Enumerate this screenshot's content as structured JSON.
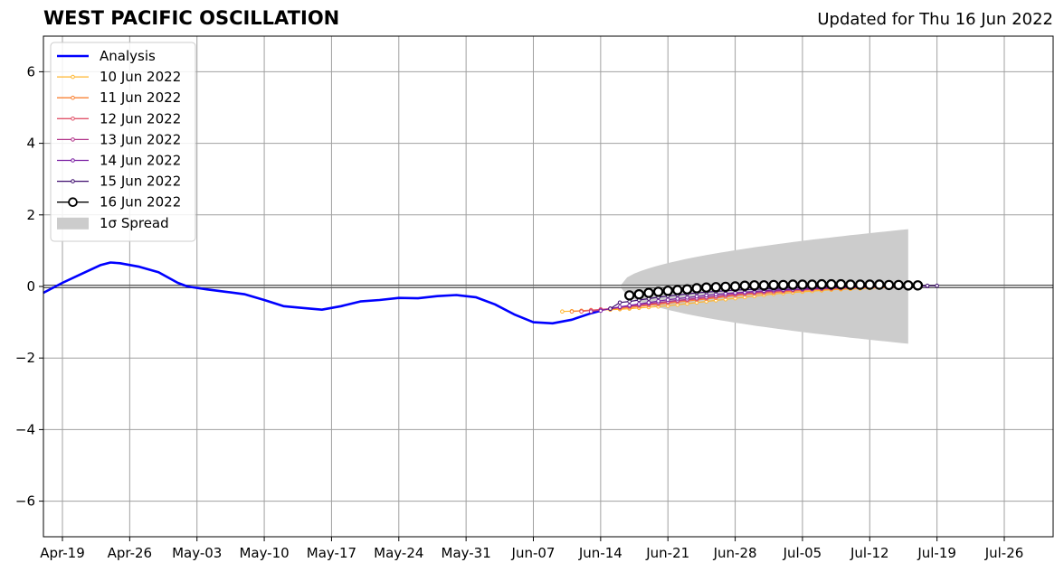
{
  "chart_data": {
    "type": "line",
    "title": "WEST PACIFIC OSCILLATION",
    "subtitle": "Updated for Thu 16 Jun 2022",
    "xlabel": "",
    "ylabel": "",
    "ylim": [
      -7,
      7
    ],
    "x_ticks": [
      "Apr-19",
      "Apr-26",
      "May-03",
      "May-10",
      "May-17",
      "May-24",
      "May-31",
      "Jun-07",
      "Jun-14",
      "Jun-21",
      "Jun-28",
      "Jul-05",
      "Jul-12",
      "Jul-19",
      "Jul-26"
    ],
    "y_ticks": [
      -6,
      -4,
      -2,
      0,
      2,
      4,
      6
    ],
    "grid": true,
    "legend_position": "upper-left",
    "analysis": {
      "name": "Analysis",
      "color": "#0000ff",
      "x": [
        "2022-04-17",
        "2022-04-19",
        "2022-04-21",
        "2022-04-23",
        "2022-04-24",
        "2022-04-25",
        "2022-04-27",
        "2022-04-29",
        "2022-05-01",
        "2022-05-02",
        "2022-05-04",
        "2022-05-06",
        "2022-05-08",
        "2022-05-10",
        "2022-05-12",
        "2022-05-14",
        "2022-05-16",
        "2022-05-18",
        "2022-05-20",
        "2022-05-22",
        "2022-05-24",
        "2022-05-26",
        "2022-05-28",
        "2022-05-30",
        "2022-06-01",
        "2022-06-03",
        "2022-06-05",
        "2022-06-07",
        "2022-06-09",
        "2022-06-11",
        "2022-06-13",
        "2022-06-14"
      ],
      "y": [
        -0.18,
        0.1,
        0.35,
        0.6,
        0.67,
        0.65,
        0.55,
        0.4,
        0.1,
        0.0,
        -0.08,
        -0.15,
        -0.22,
        -0.38,
        -0.55,
        -0.6,
        -0.65,
        -0.55,
        -0.42,
        -0.38,
        -0.32,
        -0.33,
        -0.27,
        -0.24,
        -0.3,
        -0.5,
        -0.78,
        -1.0,
        -1.03,
        -0.93,
        -0.75,
        -0.68
      ]
    },
    "forecasts": [
      {
        "name": "10 Jun 2022",
        "color": "#ffb62e",
        "start": "2022-06-10",
        "values": [
          -0.7,
          -0.69,
          -0.68,
          -0.67,
          -0.66,
          -0.65,
          -0.64,
          -0.62,
          -0.6,
          -0.58,
          -0.56,
          -0.54,
          -0.51,
          -0.48,
          -0.45,
          -0.42,
          -0.39,
          -0.36,
          -0.33,
          -0.3,
          -0.27,
          -0.24,
          -0.21,
          -0.19,
          -0.17,
          -0.15,
          -0.13,
          -0.11,
          -0.09,
          -0.08,
          -0.07,
          -0.06,
          -0.05,
          -0.04,
          -0.03
        ]
      },
      {
        "name": "11 Jun 2022",
        "color": "#fa8234",
        "start": "2022-06-11",
        "values": [
          -0.7,
          -0.68,
          -0.66,
          -0.65,
          -0.63,
          -0.61,
          -0.59,
          -0.56,
          -0.53,
          -0.5,
          -0.47,
          -0.44,
          -0.41,
          -0.38,
          -0.35,
          -0.32,
          -0.29,
          -0.26,
          -0.23,
          -0.21,
          -0.19,
          -0.17,
          -0.15,
          -0.13,
          -0.11,
          -0.09,
          -0.08,
          -0.07,
          -0.06,
          -0.05,
          -0.04,
          -0.03,
          -0.03,
          -0.02,
          -0.02
        ]
      },
      {
        "name": "12 Jun 2022",
        "color": "#e1536a",
        "start": "2022-06-12",
        "values": [
          -0.7,
          -0.67,
          -0.64,
          -0.62,
          -0.59,
          -0.56,
          -0.53,
          -0.5,
          -0.47,
          -0.44,
          -0.41,
          -0.38,
          -0.35,
          -0.32,
          -0.29,
          -0.26,
          -0.23,
          -0.2,
          -0.18,
          -0.16,
          -0.14,
          -0.12,
          -0.1,
          -0.09,
          -0.08,
          -0.06,
          -0.05,
          -0.04,
          -0.04,
          -0.03,
          -0.02,
          -0.02,
          -0.01,
          -0.01,
          0.0
        ]
      },
      {
        "name": "13 Jun 2022",
        "color": "#b2358a",
        "start": "2022-06-13",
        "values": [
          -0.7,
          -0.66,
          -0.62,
          -0.58,
          -0.55,
          -0.52,
          -0.48,
          -0.45,
          -0.42,
          -0.39,
          -0.36,
          -0.33,
          -0.3,
          -0.27,
          -0.24,
          -0.21,
          -0.19,
          -0.17,
          -0.15,
          -0.13,
          -0.11,
          -0.09,
          -0.08,
          -0.07,
          -0.06,
          -0.05,
          -0.04,
          -0.03,
          -0.03,
          -0.02,
          -0.02,
          -0.01,
          -0.01,
          0.0,
          0.0
        ]
      },
      {
        "name": "14 Jun 2022",
        "color": "#7a1fa2",
        "start": "2022-06-14",
        "values": [
          -0.68,
          -0.62,
          -0.57,
          -0.53,
          -0.49,
          -0.45,
          -0.41,
          -0.37,
          -0.34,
          -0.31,
          -0.28,
          -0.25,
          -0.22,
          -0.2,
          -0.18,
          -0.16,
          -0.14,
          -0.12,
          -0.1,
          -0.09,
          -0.08,
          -0.07,
          -0.06,
          -0.05,
          -0.04,
          -0.03,
          -0.03,
          -0.02,
          -0.02,
          -0.01,
          -0.01,
          0.0,
          0.0,
          0.0,
          0.01
        ]
      },
      {
        "name": "15 Jun 2022",
        "color": "#3d0c6e",
        "start": "2022-06-15",
        "values": [
          -0.62,
          -0.45,
          -0.42,
          -0.38,
          -0.34,
          -0.3,
          -0.27,
          -0.24,
          -0.21,
          -0.18,
          -0.16,
          -0.14,
          -0.12,
          -0.1,
          -0.09,
          -0.08,
          -0.07,
          -0.06,
          -0.05,
          -0.04,
          -0.03,
          -0.03,
          -0.02,
          -0.02,
          -0.01,
          -0.01,
          0.0,
          0.0,
          0.0,
          0.01,
          0.01,
          0.01,
          0.01,
          0.02,
          0.02
        ]
      },
      {
        "name": "16 Jun 2022",
        "color": "#000000",
        "start": "2022-06-17",
        "values": [
          -0.25,
          -0.22,
          -0.18,
          -0.15,
          -0.12,
          -0.1,
          -0.08,
          -0.05,
          -0.03,
          -0.02,
          -0.01,
          0.0,
          0.02,
          0.03,
          0.03,
          0.04,
          0.04,
          0.05,
          0.05,
          0.05,
          0.06,
          0.06,
          0.06,
          0.05,
          0.05,
          0.05,
          0.05,
          0.04,
          0.04,
          0.03,
          0.03
        ]
      }
    ],
    "spread": {
      "name": "1σ Spread",
      "color": "#cccccc",
      "start": "2022-06-16",
      "end": "2022-07-16",
      "center": 0.0,
      "max_half_width": 1.6
    }
  }
}
